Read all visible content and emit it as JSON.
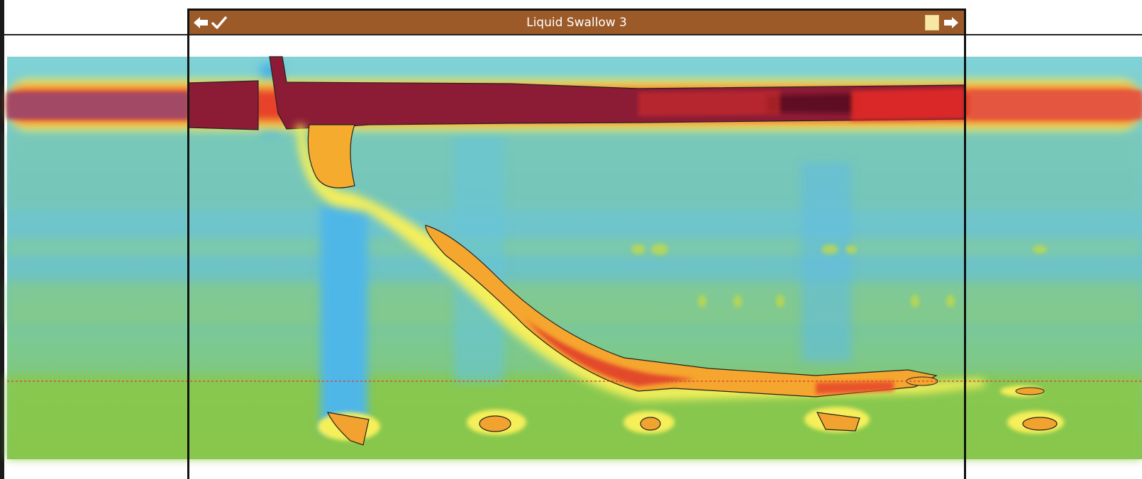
{
  "window": {
    "title": "Liquid Swallow 3",
    "back_icon": "arrow-left-icon",
    "accept_icon": "checkmark-icon",
    "square_icon": "square-icon",
    "forward_icon": "arrow-right-icon"
  },
  "colors": {
    "titlebar": "#9c5a29",
    "background_teal": "#6cc7c9",
    "baseline_green": "#8cc63f",
    "high_pressure": "#8c1c36",
    "isobar_line": "#222222",
    "guide_line": "#d94a3a"
  }
}
